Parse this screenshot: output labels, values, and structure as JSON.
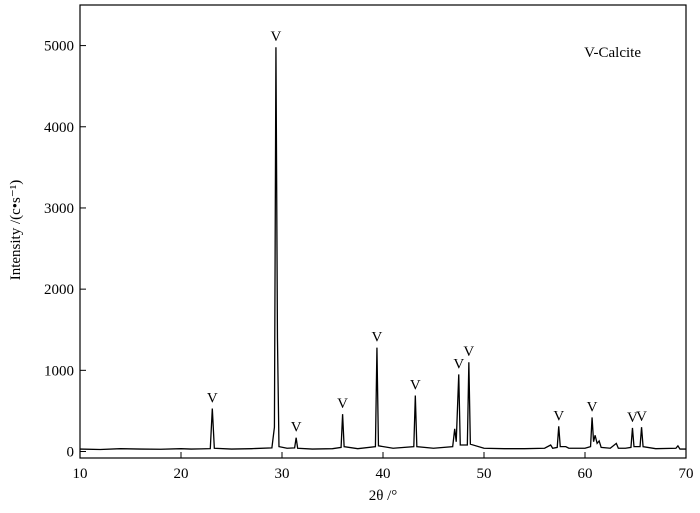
{
  "chart_data": {
    "type": "line",
    "xlabel": "2θ /°",
    "ylabel": "Intensity /(c•s⁻¹)",
    "xlim": [
      10,
      70
    ],
    "ylim": [
      -80,
      5500
    ],
    "xticks": [
      10,
      20,
      30,
      40,
      50,
      60,
      70
    ],
    "yticks": [
      0,
      1000,
      2000,
      3000,
      4000,
      5000
    ],
    "legend": "upper right",
    "series": [
      {
        "name": "V-Calcite",
        "color": "#000000",
        "x": [
          10,
          12,
          14,
          16,
          18,
          20,
          21,
          22,
          22.9,
          23.1,
          23.3,
          25,
          27,
          29,
          29.25,
          29.4,
          29.55,
          29.7,
          30.5,
          31.25,
          31.4,
          31.55,
          33,
          35,
          35.85,
          36.0,
          36.15,
          37.5,
          39.25,
          39.4,
          39.55,
          41,
          43.05,
          43.2,
          43.35,
          45,
          46.9,
          47.1,
          47.25,
          47.5,
          47.65,
          48.35,
          48.5,
          48.65,
          50,
          52,
          54,
          56,
          56.6,
          56.8,
          57.25,
          57.4,
          57.55,
          58.1,
          58.4,
          60,
          60.55,
          60.7,
          60.85,
          61.0,
          61.2,
          61.4,
          61.6,
          62.5,
          63.1,
          63.3,
          64,
          64.55,
          64.7,
          64.85,
          65.45,
          65.6,
          65.75,
          67,
          69,
          69.2,
          69.4,
          70
        ],
        "values": [
          30,
          25,
          35,
          30,
          28,
          35,
          30,
          32,
          35,
          530,
          40,
          30,
          35,
          45,
          300,
          4980,
          1400,
          60,
          40,
          45,
          170,
          40,
          30,
          35,
          50,
          460,
          60,
          35,
          60,
          1280,
          70,
          40,
          60,
          690,
          60,
          40,
          60,
          280,
          120,
          950,
          80,
          80,
          1100,
          90,
          40,
          35,
          35,
          40,
          80,
          40,
          50,
          310,
          60,
          60,
          40,
          40,
          60,
          420,
          120,
          200,
          100,
          130,
          50,
          40,
          100,
          40,
          40,
          50,
          290,
          60,
          60,
          300,
          60,
          35,
          40,
          70,
          30,
          30
        ]
      }
    ],
    "annotations": [
      {
        "text": "V",
        "x": 23.1
      },
      {
        "text": "V",
        "x": 29.4
      },
      {
        "text": "V",
        "x": 31.4
      },
      {
        "text": "V",
        "x": 36.0
      },
      {
        "text": "V",
        "x": 39.4
      },
      {
        "text": "V",
        "x": 43.2
      },
      {
        "text": "V",
        "x": 47.5
      },
      {
        "text": "V",
        "x": 48.5
      },
      {
        "text": "V",
        "x": 57.4
      },
      {
        "text": "V",
        "x": 60.7
      },
      {
        "text": "V",
        "x": 64.7
      },
      {
        "text": "V",
        "x": 65.6
      }
    ]
  }
}
